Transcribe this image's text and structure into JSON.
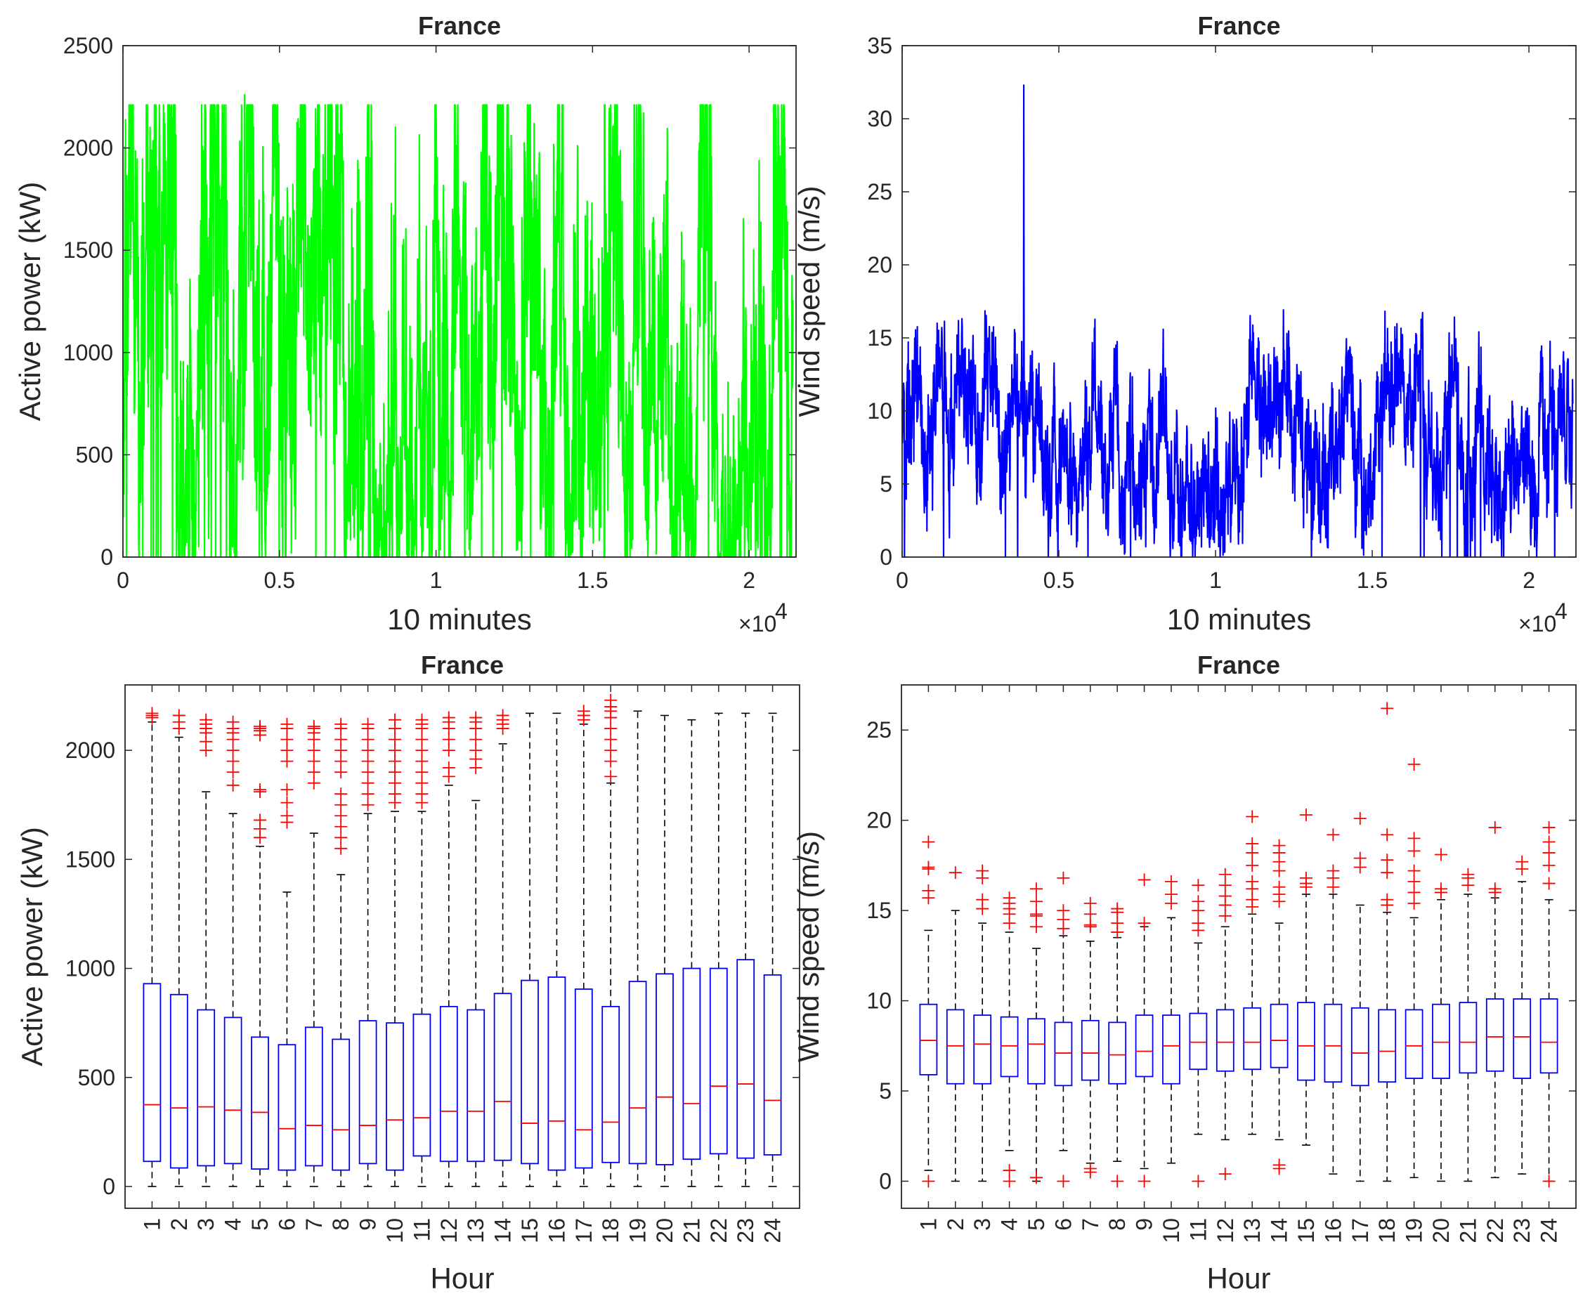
{
  "figure": {
    "charts": [
      {
        "type": "line",
        "title": "France",
        "xlabel": "10 minutes",
        "ylabel": "Active power (kW)",
        "x_multiplier_label": "×10",
        "x_multiplier_exp": "4",
        "xlim": [
          0,
          21500
        ],
        "ylim": [
          0,
          2500
        ],
        "xticks": [
          0,
          5000,
          10000,
          15000,
          20000
        ],
        "xtick_labels": [
          "0",
          "0.5",
          "1",
          "1.5",
          "2"
        ],
        "yticks": [
          0,
          500,
          1000,
          1500,
          2000,
          2500
        ],
        "color": "#00ff00",
        "approximate_points": 2300,
        "value_range": [
          0,
          2260
        ]
      },
      {
        "type": "line",
        "title": "France",
        "xlabel": "10 minutes",
        "ylabel": "Wind speed (m/s)",
        "x_multiplier_label": "×10",
        "x_multiplier_exp": "4",
        "xlim": [
          0,
          21500
        ],
        "ylim": [
          0,
          35
        ],
        "xticks": [
          0,
          5000,
          10000,
          15000,
          20000
        ],
        "xtick_labels": [
          "0",
          "0.5",
          "1",
          "1.5",
          "2"
        ],
        "yticks": [
          0,
          5,
          10,
          15,
          20,
          25,
          30,
          35
        ],
        "color": "#0000ff",
        "approximate_points": 2300,
        "value_range": [
          0,
          32.3
        ]
      },
      {
        "type": "box",
        "title": "France",
        "xlabel": "Hour",
        "ylabel": "Active power (kW)",
        "ylim": [
          -100,
          2300
        ],
        "yticks": [
          0,
          500,
          1000,
          1500,
          2000
        ],
        "categories": [
          "1",
          "2",
          "3",
          "4",
          "5",
          "6",
          "7",
          "8",
          "9",
          "10",
          "11",
          "12",
          "13",
          "14",
          "15",
          "16",
          "17",
          "18",
          "19",
          "20",
          "21",
          "22",
          "23",
          "24"
        ],
        "boxes": [
          {
            "q1": 115,
            "median": 375,
            "q3": 930,
            "whisker_low": 0,
            "whisker_high": 2130,
            "outliers": [
              2150,
              2160,
              2170
            ]
          },
          {
            "q1": 85,
            "median": 360,
            "q3": 880,
            "whisker_low": 0,
            "whisker_high": 2060,
            "outliers": [
              2100,
              2130,
              2160
            ]
          },
          {
            "q1": 95,
            "median": 365,
            "q3": 810,
            "whisker_low": 0,
            "whisker_high": 1810,
            "outliers": [
              2000,
              2040,
              2080,
              2100,
              2120,
              2140
            ]
          },
          {
            "q1": 105,
            "median": 350,
            "q3": 775,
            "whisker_low": 0,
            "whisker_high": 1710,
            "outliers": [
              1840,
              1900,
              1950,
              2000,
              2050,
              2080,
              2100,
              2130
            ]
          },
          {
            "q1": 80,
            "median": 340,
            "q3": 685,
            "whisker_low": 0,
            "whisker_high": 1560,
            "outliers": [
              1600,
              1640,
              1680,
              1810,
              1820,
              2070,
              2090,
              2100,
              2110
            ]
          },
          {
            "q1": 75,
            "median": 265,
            "q3": 650,
            "whisker_low": 0,
            "whisker_high": 1350,
            "outliers": [
              1670,
              1700,
              1760,
              1820,
              1950,
              2000,
              2050,
              2100,
              2120
            ]
          },
          {
            "q1": 95,
            "median": 280,
            "q3": 730,
            "whisker_low": 0,
            "whisker_high": 1620,
            "outliers": [
              1850,
              1900,
              1950,
              2000,
              2050,
              2080,
              2100,
              2110
            ]
          },
          {
            "q1": 75,
            "median": 260,
            "q3": 675,
            "whisker_low": 0,
            "whisker_high": 1430,
            "outliers": [
              1550,
              1600,
              1650,
              1700,
              1750,
              1800,
              1900,
              1950,
              2000,
              2050,
              2100,
              2120
            ]
          },
          {
            "q1": 105,
            "median": 280,
            "q3": 760,
            "whisker_low": 0,
            "whisker_high": 1710,
            "outliers": [
              1750,
              1800,
              1850,
              1900,
              1950,
              2000,
              2050,
              2100,
              2120
            ]
          },
          {
            "q1": 75,
            "median": 305,
            "q3": 750,
            "whisker_low": 0,
            "whisker_high": 1720,
            "outliers": [
              1760,
              1800,
              1850,
              1900,
              1950,
              2000,
              2050,
              2100,
              2140
            ]
          },
          {
            "q1": 140,
            "median": 315,
            "q3": 790,
            "whisker_low": 0,
            "whisker_high": 1720,
            "outliers": [
              1760,
              1800,
              1850,
              1900,
              1950,
              2000,
              2050,
              2100,
              2120,
              2140
            ]
          },
          {
            "q1": 115,
            "median": 345,
            "q3": 825,
            "whisker_low": 0,
            "whisker_high": 1840,
            "outliers": [
              1880,
              1920,
              2000,
              2050,
              2100,
              2130,
              2150
            ]
          },
          {
            "q1": 115,
            "median": 345,
            "q3": 810,
            "whisker_low": 0,
            "whisker_high": 1770,
            "outliers": [
              1920,
              1960,
              2000,
              2050,
              2100,
              2130,
              2150
            ]
          },
          {
            "q1": 120,
            "median": 390,
            "q3": 885,
            "whisker_low": 0,
            "whisker_high": 2030,
            "outliers": [
              2100,
              2120,
              2140,
              2160
            ]
          },
          {
            "q1": 105,
            "median": 290,
            "q3": 945,
            "whisker_low": 0,
            "whisker_high": 2170,
            "outliers": []
          },
          {
            "q1": 75,
            "median": 300,
            "q3": 960,
            "whisker_low": 0,
            "whisker_high": 2170,
            "outliers": []
          },
          {
            "q1": 85,
            "median": 260,
            "q3": 905,
            "whisker_low": 0,
            "whisker_high": 2120,
            "outliers": [
              2140,
              2160,
              2180
            ]
          },
          {
            "q1": 110,
            "median": 295,
            "q3": 825,
            "whisker_low": 0,
            "whisker_high": 1850,
            "outliers": [
              1880,
              1950,
              2000,
              2050,
              2100,
              2150,
              2180,
              2200,
              2230
            ]
          },
          {
            "q1": 105,
            "median": 360,
            "q3": 940,
            "whisker_low": 0,
            "whisker_high": 2180,
            "outliers": []
          },
          {
            "q1": 100,
            "median": 410,
            "q3": 975,
            "whisker_low": 0,
            "whisker_high": 2160,
            "outliers": []
          },
          {
            "q1": 125,
            "median": 380,
            "q3": 1000,
            "whisker_low": 0,
            "whisker_high": 2140,
            "outliers": []
          },
          {
            "q1": 150,
            "median": 460,
            "q3": 1000,
            "whisker_low": 0,
            "whisker_high": 2170,
            "outliers": []
          },
          {
            "q1": 130,
            "median": 470,
            "q3": 1040,
            "whisker_low": 0,
            "whisker_high": 2170,
            "outliers": []
          },
          {
            "q1": 145,
            "median": 395,
            "q3": 970,
            "whisker_low": 0,
            "whisker_high": 2170,
            "outliers": []
          }
        ]
      },
      {
        "type": "box",
        "title": "France",
        "xlabel": "Hour",
        "ylabel": "Wind speed (m/s)",
        "ylim": [
          -1.5,
          27.5
        ],
        "yticks": [
          0,
          5,
          10,
          15,
          20,
          25
        ],
        "categories": [
          "1",
          "2",
          "3",
          "4",
          "5",
          "6",
          "7",
          "8",
          "9",
          "10",
          "11",
          "12",
          "13",
          "14",
          "15",
          "16",
          "17",
          "18",
          "19",
          "20",
          "21",
          "22",
          "23",
          "24"
        ],
        "boxes": [
          {
            "q1": 5.9,
            "median": 7.8,
            "q3": 9.8,
            "whisker_low": 0.6,
            "whisker_high": 13.9,
            "outliers": [
              0,
              15.7,
              16.1,
              17.3,
              17.4,
              18.8
            ]
          },
          {
            "q1": 5.4,
            "median": 7.5,
            "q3": 9.5,
            "whisker_low": 0,
            "whisker_high": 15.0,
            "outliers": [
              17.1
            ]
          },
          {
            "q1": 5.4,
            "median": 7.6,
            "q3": 9.2,
            "whisker_low": 0,
            "whisker_high": 14.3,
            "outliers": [
              15.1,
              15.6,
              16.8,
              17.2
            ]
          },
          {
            "q1": 5.8,
            "median": 7.5,
            "q3": 9.1,
            "whisker_low": 1.7,
            "whisker_high": 13.8,
            "outliers": [
              0,
              0.6,
              14.3,
              14.8,
              15.1,
              15.4,
              15.7
            ]
          },
          {
            "q1": 5.4,
            "median": 7.6,
            "q3": 9.0,
            "whisker_low": 0,
            "whisker_high": 12.9,
            "outliers": [
              0.2,
              14.1,
              14.7,
              14.8,
              15.5,
              16.2
            ]
          },
          {
            "q1": 5.3,
            "median": 7.1,
            "q3": 8.8,
            "whisker_low": 1.7,
            "whisker_high": 13.6,
            "outliers": [
              0,
              14.0,
              14.5,
              15.0,
              16.8
            ]
          },
          {
            "q1": 5.6,
            "median": 7.1,
            "q3": 8.9,
            "whisker_low": 1.0,
            "whisker_high": 13.3,
            "outliers": [
              0.5,
              0.7,
              14.1,
              14.2,
              14.8,
              15.4
            ]
          },
          {
            "q1": 5.4,
            "median": 7.0,
            "q3": 8.8,
            "whisker_low": 1.1,
            "whisker_high": 13.5,
            "outliers": [
              0,
              13.8,
              14.3,
              14.9,
              15.1
            ]
          },
          {
            "q1": 5.8,
            "median": 7.2,
            "q3": 9.2,
            "whisker_low": 0.7,
            "whisker_high": 14.1,
            "outliers": [
              0,
              14.3,
              16.7
            ]
          },
          {
            "q1": 5.4,
            "median": 7.5,
            "q3": 9.2,
            "whisker_low": 1.0,
            "whisker_high": 14.6,
            "outliers": [
              15.4,
              15.9,
              16.6
            ]
          },
          {
            "q1": 6.2,
            "median": 7.7,
            "q3": 9.3,
            "whisker_low": 2.6,
            "whisker_high": 13.2,
            "outliers": [
              0,
              13.9,
              14.3,
              15.0,
              15.5,
              16.4
            ]
          },
          {
            "q1": 6.1,
            "median": 7.7,
            "q3": 9.5,
            "whisker_low": 2.3,
            "whisker_high": 14.1,
            "outliers": [
              0.4,
              14.7,
              15.3,
              15.8,
              16.4,
              17.0
            ]
          },
          {
            "q1": 6.2,
            "median": 7.7,
            "q3": 9.6,
            "whisker_low": 2.6,
            "whisker_high": 14.8,
            "outliers": [
              15.2,
              15.6,
              16.2,
              16.6,
              17.5,
              18.2,
              18.7,
              20.2
            ]
          },
          {
            "q1": 6.3,
            "median": 7.8,
            "q3": 9.8,
            "whisker_low": 2.3,
            "whisker_high": 14.3,
            "outliers": [
              0.7,
              0.9,
              15.5,
              15.9,
              16.3,
              17.2,
              17.7,
              18.2,
              18.6
            ]
          },
          {
            "q1": 5.6,
            "median": 7.5,
            "q3": 9.9,
            "whisker_low": 2.0,
            "whisker_high": 15.9,
            "outliers": [
              16.3,
              16.5,
              16.8,
              20.3
            ]
          },
          {
            "q1": 5.5,
            "median": 7.5,
            "q3": 9.8,
            "whisker_low": 0.4,
            "whisker_high": 15.9,
            "outliers": [
              16.3,
              16.8,
              17.2,
              19.2
            ]
          },
          {
            "q1": 5.3,
            "median": 7.1,
            "q3": 9.6,
            "whisker_low": 0,
            "whisker_high": 15.3,
            "outliers": [
              17.4,
              17.9,
              20.1
            ]
          },
          {
            "q1": 5.5,
            "median": 7.2,
            "q3": 9.5,
            "whisker_low": 0,
            "whisker_high": 14.9,
            "outliers": [
              15.3,
              15.6,
              17.1,
              17.8,
              19.2,
              26.2
            ]
          },
          {
            "q1": 5.7,
            "median": 7.5,
            "q3": 9.5,
            "whisker_low": 0.2,
            "whisker_high": 14.6,
            "outliers": [
              15.4,
              16.0,
              16.6,
              17.2,
              18.3,
              19.0,
              23.1
            ]
          },
          {
            "q1": 5.7,
            "median": 7.7,
            "q3": 9.8,
            "whisker_low": 0,
            "whisker_high": 15.6,
            "outliers": [
              16.0,
              16.2,
              18.1
            ]
          },
          {
            "q1": 6.0,
            "median": 7.7,
            "q3": 9.9,
            "whisker_low": 0,
            "whisker_high": 15.9,
            "outliers": [
              16.4,
              16.8,
              17.0
            ]
          },
          {
            "q1": 6.1,
            "median": 8.0,
            "q3": 10.1,
            "whisker_low": 0.2,
            "whisker_high": 15.7,
            "outliers": [
              16.0,
              16.2,
              19.6
            ]
          },
          {
            "q1": 5.7,
            "median": 8.0,
            "q3": 10.1,
            "whisker_low": 0.4,
            "whisker_high": 16.6,
            "outliers": [
              17.3,
              17.7
            ]
          },
          {
            "q1": 6.0,
            "median": 7.7,
            "q3": 10.1,
            "whisker_low": 0,
            "whisker_high": 15.6,
            "outliers": [
              0,
              16.5,
              17.5,
              18.2,
              18.8,
              19.6
            ]
          }
        ]
      }
    ]
  }
}
